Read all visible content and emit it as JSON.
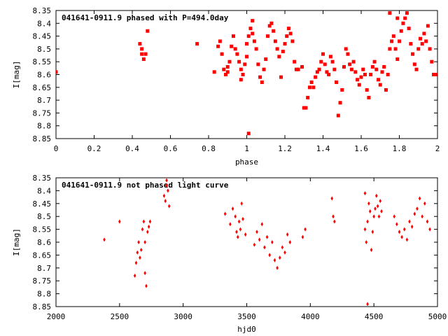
{
  "chart_data": [
    {
      "type": "scatter",
      "title": "041641-0911.9 phased with P=494.0day",
      "xlabel": "phase",
      "ylabel": "I[mag]",
      "xlim": [
        0,
        2
      ],
      "ylim": [
        8.35,
        8.85
      ],
      "y_inverted": true,
      "grid": false,
      "x_ticks": [
        "0",
        "0.2",
        "0.4",
        "0.6",
        "0.8",
        "1",
        "1.2",
        "1.4",
        "1.6",
        "1.8",
        "2"
      ],
      "y_ticks": [
        "8.35",
        "8.4",
        "8.45",
        "8.5",
        "8.55",
        "8.6",
        "8.65",
        "8.7",
        "8.75",
        "8.8",
        "8.85"
      ],
      "marker_color": "#ff0000",
      "series": [
        {
          "points": [
            [
              0.0,
              8.59
            ],
            [
              0.44,
              8.48
            ],
            [
              0.45,
              8.5
            ],
            [
              0.45,
              8.52
            ],
            [
              0.46,
              8.54
            ],
            [
              0.47,
              8.52
            ],
            [
              0.48,
              8.43
            ],
            [
              0.74,
              8.48
            ],
            [
              0.83,
              8.59
            ],
            [
              0.85,
              8.49
            ],
            [
              0.86,
              8.47
            ],
            [
              0.87,
              8.52
            ],
            [
              0.88,
              8.58
            ],
            [
              0.89,
              8.6
            ],
            [
              0.9,
              8.59
            ],
            [
              0.9,
              8.57
            ],
            [
              0.91,
              8.55
            ],
            [
              0.92,
              8.49
            ],
            [
              0.93,
              8.45
            ],
            [
              0.94,
              8.5
            ],
            [
              0.95,
              8.52
            ],
            [
              0.96,
              8.55
            ],
            [
              0.97,
              8.58
            ],
            [
              0.97,
              8.62
            ],
            [
              0.98,
              8.6
            ],
            [
              0.99,
              8.56
            ],
            [
              1.0,
              8.53
            ],
            [
              1.0,
              8.48
            ],
            [
              1.01,
              8.45
            ],
            [
              1.02,
              8.42
            ],
            [
              1.03,
              8.39
            ],
            [
              1.03,
              8.44
            ],
            [
              1.04,
              8.47
            ],
            [
              1.05,
              8.5
            ],
            [
              1.06,
              8.56
            ],
            [
              1.07,
              8.61
            ],
            [
              1.08,
              8.63
            ],
            [
              1.09,
              8.58
            ],
            [
              1.1,
              8.54
            ],
            [
              1.11,
              8.45
            ],
            [
              1.12,
              8.41
            ],
            [
              1.13,
              8.4
            ],
            [
              1.14,
              8.43
            ],
            [
              1.15,
              8.47
            ],
            [
              1.16,
              8.5
            ],
            [
              1.17,
              8.53
            ],
            [
              1.18,
              8.61
            ],
            [
              1.19,
              8.51
            ],
            [
              1.2,
              8.48
            ],
            [
              1.21,
              8.45
            ],
            [
              1.22,
              8.42
            ],
            [
              1.23,
              8.44
            ],
            [
              1.24,
              8.47
            ],
            [
              1.25,
              8.55
            ],
            [
              1.26,
              8.58
            ],
            [
              1.27,
              8.58
            ],
            [
              1.29,
              8.57
            ],
            [
              1.3,
              8.73
            ],
            [
              1.31,
              8.73
            ],
            [
              1.32,
              8.69
            ],
            [
              1.33,
              8.65
            ],
            [
              1.34,
              8.63
            ],
            [
              1.35,
              8.65
            ],
            [
              1.36,
              8.61
            ],
            [
              1.37,
              8.59
            ],
            [
              1.38,
              8.58
            ],
            [
              1.39,
              8.55
            ],
            [
              1.4,
              8.52
            ],
            [
              1.41,
              8.56
            ],
            [
              1.42,
              8.59
            ],
            [
              1.43,
              8.6
            ],
            [
              1.44,
              8.53
            ],
            [
              1.45,
              8.55
            ],
            [
              1.46,
              8.58
            ],
            [
              1.47,
              8.63
            ],
            [
              1.48,
              8.76
            ],
            [
              1.49,
              8.71
            ],
            [
              1.5,
              8.66
            ],
            [
              1.51,
              8.57
            ],
            [
              1.52,
              8.5
            ],
            [
              1.53,
              8.52
            ],
            [
              1.54,
              8.56
            ],
            [
              1.55,
              8.58
            ],
            [
              1.56,
              8.55
            ],
            [
              1.57,
              8.59
            ],
            [
              1.58,
              8.62
            ],
            [
              1.59,
              8.64
            ],
            [
              1.6,
              8.61
            ],
            [
              1.61,
              8.58
            ],
            [
              1.62,
              8.6
            ],
            [
              1.63,
              8.66
            ],
            [
              1.64,
              8.69
            ],
            [
              1.65,
              8.6
            ],
            [
              1.66,
              8.57
            ],
            [
              1.67,
              8.55
            ],
            [
              1.68,
              8.58
            ],
            [
              1.69,
              8.62
            ],
            [
              1.7,
              8.64
            ],
            [
              1.71,
              8.59
            ],
            [
              1.72,
              8.57
            ],
            [
              1.73,
              8.66
            ],
            [
              1.74,
              8.6
            ],
            [
              1.75,
              8.5
            ],
            [
              1.76,
              8.47
            ],
            [
              1.77,
              8.45
            ],
            [
              1.78,
              8.5
            ],
            [
              1.79,
              8.54
            ],
            [
              1.8,
              8.47
            ],
            [
              1.81,
              8.43
            ],
            [
              1.82,
              8.4
            ],
            [
              1.83,
              8.38
            ],
            [
              1.84,
              8.36
            ],
            [
              1.85,
              8.42
            ],
            [
              1.86,
              8.48
            ],
            [
              1.87,
              8.52
            ],
            [
              1.88,
              8.56
            ],
            [
              1.89,
              8.58
            ],
            [
              1.9,
              8.5
            ],
            [
              1.91,
              8.46
            ],
            [
              1.92,
              8.48
            ],
            [
              1.93,
              8.44
            ],
            [
              1.94,
              8.47
            ],
            [
              1.95,
              8.41
            ],
            [
              1.96,
              8.5
            ],
            [
              1.97,
              8.55
            ],
            [
              1.98,
              8.6
            ],
            [
              1.99,
              8.6
            ],
            [
              1.01,
              8.83
            ],
            [
              1.75,
              8.36
            ],
            [
              1.79,
              8.38
            ]
          ]
        }
      ]
    },
    {
      "type": "scatter",
      "title": "041641-0911.9 not phased light curve",
      "xlabel": "hjd0",
      "ylabel": "I[mag]",
      "xlim": [
        2000,
        5000
      ],
      "ylim": [
        8.35,
        8.85
      ],
      "y_inverted": true,
      "grid": false,
      "x_ticks": [
        "2000",
        "2500",
        "3000",
        "3500",
        "4000",
        "4500",
        "5000"
      ],
      "y_ticks": [
        "8.35",
        "8.4",
        "8.45",
        "8.5",
        "8.55",
        "8.6",
        "8.65",
        "8.7",
        "8.75",
        "8.8",
        "8.85"
      ],
      "marker_color": "#ff0000",
      "series": [
        {
          "points": [
            [
              2380,
              8.59
            ],
            [
              2500,
              8.52
            ],
            [
              2620,
              8.73
            ],
            [
              2630,
              8.68
            ],
            [
              2640,
              8.64
            ],
            [
              2650,
              8.6
            ],
            [
              2660,
              8.66
            ],
            [
              2670,
              8.63
            ],
            [
              2680,
              8.55
            ],
            [
              2690,
              8.52
            ],
            [
              2700,
              8.6
            ],
            [
              2700,
              8.72
            ],
            [
              2710,
              8.77
            ],
            [
              2720,
              8.56
            ],
            [
              2730,
              8.54
            ],
            [
              2740,
              8.52
            ],
            [
              2850,
              8.42
            ],
            [
              2860,
              8.44
            ],
            [
              2870,
              8.38
            ],
            [
              2880,
              8.4
            ],
            [
              2890,
              8.46
            ],
            [
              2870,
              8.36
            ],
            [
              3330,
              8.49
            ],
            [
              3370,
              8.53
            ],
            [
              3390,
              8.47
            ],
            [
              3410,
              8.5
            ],
            [
              3420,
              8.56
            ],
            [
              3430,
              8.58
            ],
            [
              3440,
              8.52
            ],
            [
              3450,
              8.55
            ],
            [
              3460,
              8.45
            ],
            [
              3470,
              8.51
            ],
            [
              3490,
              8.57
            ],
            [
              3560,
              8.61
            ],
            [
              3580,
              8.56
            ],
            [
              3600,
              8.59
            ],
            [
              3620,
              8.53
            ],
            [
              3640,
              8.62
            ],
            [
              3660,
              8.58
            ],
            [
              3680,
              8.65
            ],
            [
              3700,
              8.6
            ],
            [
              3720,
              8.67
            ],
            [
              3740,
              8.7
            ],
            [
              3760,
              8.66
            ],
            [
              3780,
              8.62
            ],
            [
              3800,
              8.64
            ],
            [
              3820,
              8.57
            ],
            [
              3840,
              8.6
            ],
            [
              3940,
              8.58
            ],
            [
              3960,
              8.55
            ],
            [
              4170,
              8.43
            ],
            [
              4180,
              8.5
            ],
            [
              4190,
              8.52
            ],
            [
              4430,
              8.55
            ],
            [
              4440,
              8.6
            ],
            [
              4450,
              8.52
            ],
            [
              4460,
              8.45
            ],
            [
              4470,
              8.48
            ],
            [
              4480,
              8.63
            ],
            [
              4490,
              8.56
            ],
            [
              4500,
              8.5
            ],
            [
              4510,
              8.47
            ],
            [
              4520,
              8.42
            ],
            [
              4530,
              8.46
            ],
            [
              4540,
              8.5
            ],
            [
              4550,
              8.44
            ],
            [
              4560,
              8.48
            ],
            [
              4660,
              8.5
            ],
            [
              4680,
              8.53
            ],
            [
              4700,
              8.56
            ],
            [
              4720,
              8.58
            ],
            [
              4740,
              8.55
            ],
            [
              4760,
              8.59
            ],
            [
              4780,
              8.52
            ],
            [
              4800,
              8.54
            ],
            [
              4820,
              8.49
            ],
            [
              4840,
              8.47
            ],
            [
              4860,
              8.43
            ],
            [
              4880,
              8.5
            ],
            [
              4900,
              8.45
            ],
            [
              4920,
              8.52
            ],
            [
              4940,
              8.55
            ],
            [
              4450,
              8.84
            ],
            [
              4430,
              8.41
            ]
          ]
        }
      ]
    }
  ]
}
